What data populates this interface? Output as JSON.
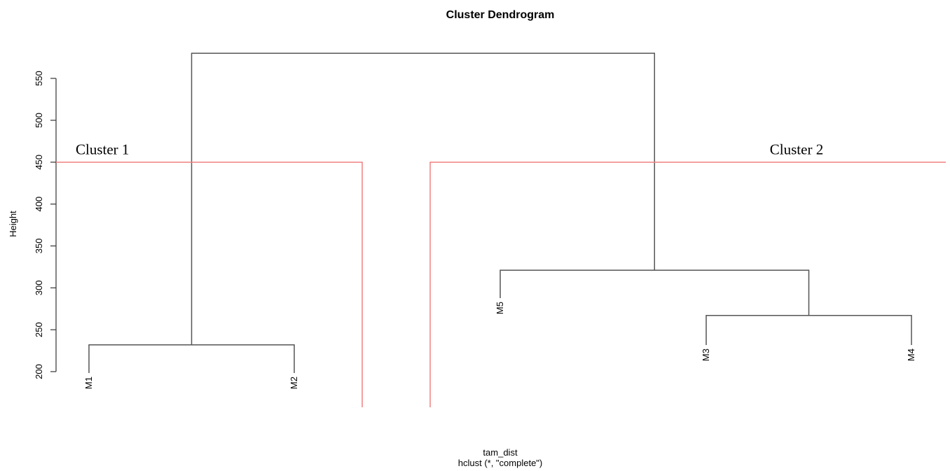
{
  "chart_data": {
    "type": "dendrogram",
    "title": "Cluster Dendrogram",
    "xlabel": "tam_dist",
    "sub": "hclust (*, \"complete\")",
    "ylabel": "Height",
    "ylim": [
      200,
      580
    ],
    "yticks": [
      200,
      250,
      300,
      350,
      400,
      450,
      500,
      550
    ],
    "leaves": [
      "M1",
      "M2",
      "M5",
      "M3",
      "M4"
    ],
    "merges": [
      {
        "left": "M1",
        "right": "M2",
        "height": 232
      },
      {
        "left": "M3",
        "right": "M4",
        "height": 267
      },
      {
        "left": "M5",
        "right": "M3+M4",
        "height": 321
      },
      {
        "left": "M1+M2",
        "right": "M5+M3+M4",
        "height": 580
      }
    ],
    "cut_height": 450,
    "clusters": [
      {
        "label": "Cluster 1",
        "members": [
          "M1",
          "M2"
        ]
      },
      {
        "label": "Cluster 2",
        "members": [
          "M5",
          "M3",
          "M4"
        ]
      }
    ],
    "colors": {
      "tree": "#555555",
      "cut": "#f08080",
      "axis": "#333333",
      "text": "#000000"
    }
  }
}
